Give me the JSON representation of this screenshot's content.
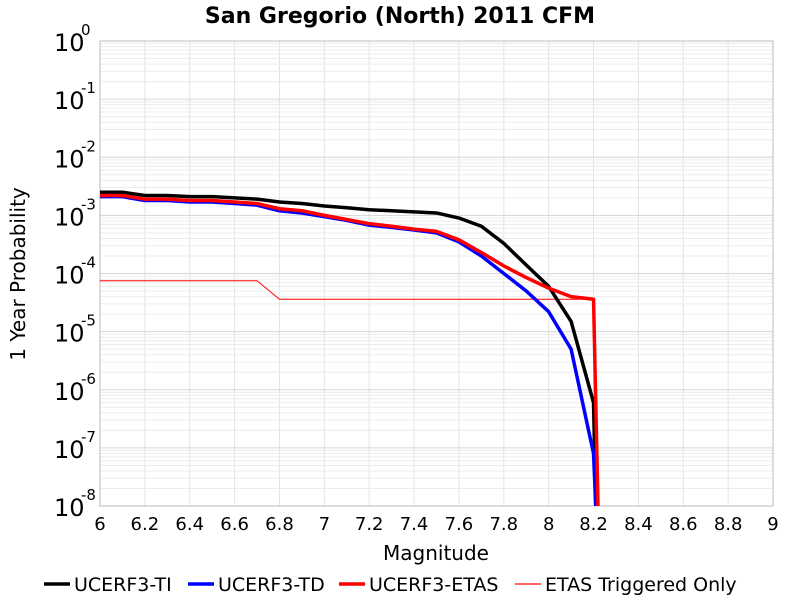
{
  "chart_data": {
    "type": "line",
    "title": "San Gregorio (North) 2011 CFM",
    "xlabel": "Magnitude",
    "ylabel": "1 Year Probability",
    "xlim": [
      6,
      9
    ],
    "ylim": [
      1e-08,
      1
    ],
    "yscale": "log",
    "grid": true,
    "legend_position": "bottom",
    "x_ticks": [
      "6",
      "6.2",
      "6.4",
      "6.6",
      "6.8",
      "7",
      "7.2",
      "7.4",
      "7.6",
      "7.8",
      "8",
      "8.2",
      "8.4",
      "8.6",
      "8.8",
      "9"
    ],
    "y_ticks": [
      {
        "base": "10",
        "exp": "0"
      },
      {
        "base": "10",
        "exp": "-1"
      },
      {
        "base": "10",
        "exp": "-2"
      },
      {
        "base": "10",
        "exp": "-3"
      },
      {
        "base": "10",
        "exp": "-4"
      },
      {
        "base": "10",
        "exp": "-5"
      },
      {
        "base": "10",
        "exp": "-6"
      },
      {
        "base": "10",
        "exp": "-7"
      },
      {
        "base": "10",
        "exp": "-8"
      }
    ],
    "series": [
      {
        "name": "UCERF3-TI",
        "color": "#000000",
        "width": 3.5,
        "x": [
          6.0,
          6.1,
          6.2,
          6.3,
          6.4,
          6.5,
          6.6,
          6.7,
          6.8,
          6.9,
          7.0,
          7.1,
          7.2,
          7.3,
          7.4,
          7.5,
          7.6,
          7.7,
          7.8,
          7.9,
          8.0,
          8.1,
          8.2,
          8.21
        ],
        "y": [
          0.0025,
          0.0025,
          0.0022,
          0.0022,
          0.0021,
          0.0021,
          0.002,
          0.0019,
          0.0017,
          0.0016,
          0.00145,
          0.00135,
          0.00125,
          0.0012,
          0.00115,
          0.0011,
          0.0009,
          0.00065,
          0.00033,
          0.00014,
          6e-05,
          1.5e-05,
          6e-07,
          1e-09
        ]
      },
      {
        "name": "UCERF3-TD",
        "color": "#0000ff",
        "width": 3.5,
        "x": [
          6.0,
          6.1,
          6.2,
          6.3,
          6.4,
          6.5,
          6.6,
          6.7,
          6.8,
          6.9,
          7.0,
          7.1,
          7.2,
          7.3,
          7.4,
          7.5,
          7.6,
          7.7,
          7.8,
          7.9,
          8.0,
          8.1,
          8.2,
          8.21
        ],
        "y": [
          0.0021,
          0.0021,
          0.0018,
          0.0018,
          0.0017,
          0.0017,
          0.0016,
          0.0015,
          0.0012,
          0.0011,
          0.00095,
          0.00082,
          0.00068,
          0.00062,
          0.00056,
          0.0005,
          0.00035,
          0.0002,
          0.0001,
          5e-05,
          2.2e-05,
          5e-06,
          8e-08,
          1e-09
        ]
      },
      {
        "name": "UCERF3-ETAS",
        "color": "#ff0000",
        "width": 3.5,
        "x": [
          6.0,
          6.1,
          6.2,
          6.3,
          6.4,
          6.5,
          6.6,
          6.7,
          6.8,
          6.9,
          7.0,
          7.1,
          7.2,
          7.3,
          7.4,
          7.5,
          7.6,
          7.7,
          7.8,
          7.9,
          8.0,
          8.1,
          8.2,
          8.22
        ],
        "y": [
          0.0022,
          0.0022,
          0.0019,
          0.0019,
          0.0018,
          0.0018,
          0.0017,
          0.0016,
          0.0013,
          0.0012,
          0.001,
          0.00085,
          0.00072,
          0.00065,
          0.00058,
          0.00053,
          0.00038,
          0.00023,
          0.000135,
          8.5e-05,
          5.6e-05,
          4e-05,
          3.6e-05,
          1e-09
        ]
      },
      {
        "name": "ETAS Triggered Only",
        "color": "#ff0000",
        "width": 1,
        "x": [
          6.0,
          6.1,
          6.2,
          6.3,
          6.4,
          6.5,
          6.6,
          6.7,
          6.8,
          6.9,
          7.0,
          7.1,
          7.2,
          7.3,
          7.4,
          7.5,
          7.6,
          7.7,
          7.8,
          7.9,
          8.0,
          8.1,
          8.2
        ],
        "y": [
          7.5e-05,
          7.5e-05,
          7.5e-05,
          7.5e-05,
          7.5e-05,
          7.5e-05,
          7.5e-05,
          7.5e-05,
          3.6e-05,
          3.6e-05,
          3.6e-05,
          3.6e-05,
          3.6e-05,
          3.6e-05,
          3.6e-05,
          3.6e-05,
          3.6e-05,
          3.6e-05,
          3.6e-05,
          3.6e-05,
          3.6e-05,
          3.6e-05,
          3.6e-05
        ]
      }
    ]
  }
}
